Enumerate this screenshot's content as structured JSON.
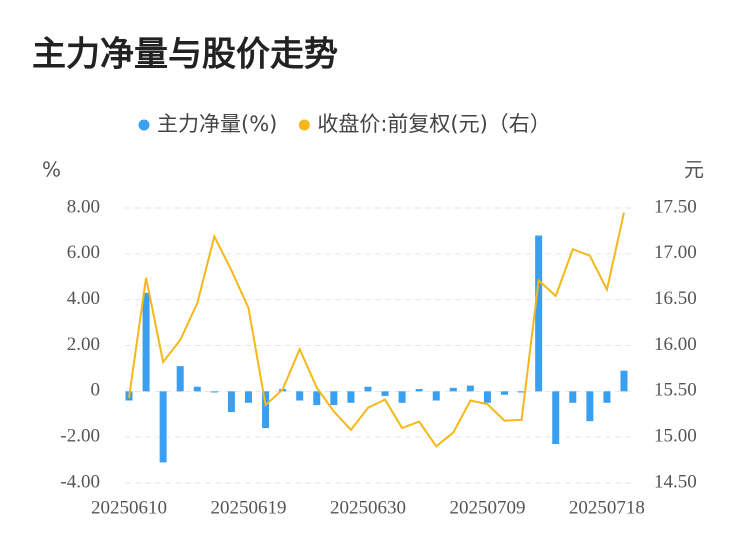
{
  "chart_data": {
    "type": "bar-line",
    "title": "主力净量与股价走势",
    "y_label": "%",
    "y2_label": "元",
    "categories": [
      "20250610",
      null,
      null,
      null,
      null,
      null,
      null,
      "20250619",
      null,
      null,
      null,
      null,
      null,
      null,
      "20250630",
      null,
      null,
      null,
      null,
      null,
      null,
      "20250709",
      null,
      null,
      null,
      null,
      null,
      null,
      "20250718",
      null
    ],
    "series": [
      {
        "name": "主力净量(%)",
        "type": "bar",
        "color": "#3a9ff0",
        "values": [
          -0.4,
          4.3,
          -3.1,
          1.1,
          0.2,
          -0.05,
          -0.9,
          -0.5,
          -1.6,
          0.1,
          -0.4,
          -0.6,
          -0.6,
          -0.5,
          0.2,
          -0.2,
          -0.5,
          0.1,
          -0.4,
          0.15,
          0.25,
          -0.5,
          -0.15,
          -0.05,
          6.8,
          -2.3,
          -0.5,
          -1.3,
          -0.5,
          0.9
        ]
      },
      {
        "name": "收盘价:前复权(元)（右）",
        "type": "line",
        "axis": "y2",
        "color": "#f5b818",
        "values": [
          15.43,
          16.74,
          15.82,
          16.06,
          16.46,
          17.19,
          16.82,
          16.41,
          15.35,
          15.52,
          15.96,
          15.54,
          15.28,
          15.08,
          15.32,
          15.41,
          15.1,
          15.17,
          14.9,
          15.05,
          15.4,
          15.36,
          15.18,
          15.19,
          16.71,
          16.54,
          17.05,
          16.98,
          16.61,
          17.45
        ]
      }
    ],
    "ylim": [
      -4,
      8
    ],
    "yticks": [
      {
        "value": -4,
        "label": "-4.00"
      },
      {
        "value": -2,
        "label": "-2.00"
      },
      0,
      {
        "value": 2,
        "label": "2.00"
      },
      {
        "value": 4,
        "label": "4.00"
      },
      {
        "value": 6,
        "label": "6.00"
      },
      {
        "value": 8,
        "label": "8.00"
      }
    ],
    "y2lim": [
      14.5,
      17.5
    ],
    "y2ticks": [
      {
        "value": 14.5,
        "label": "14.50"
      },
      {
        "value": 15,
        "label": "15.00"
      },
      {
        "value": 15.5,
        "label": "15.50"
      },
      {
        "value": 16,
        "label": "16.00"
      },
      {
        "value": 16.5,
        "label": "16.50"
      },
      {
        "value": 17,
        "label": "17.00"
      },
      {
        "value": 17.5,
        "label": "17.50"
      }
    ],
    "grid": true
  }
}
